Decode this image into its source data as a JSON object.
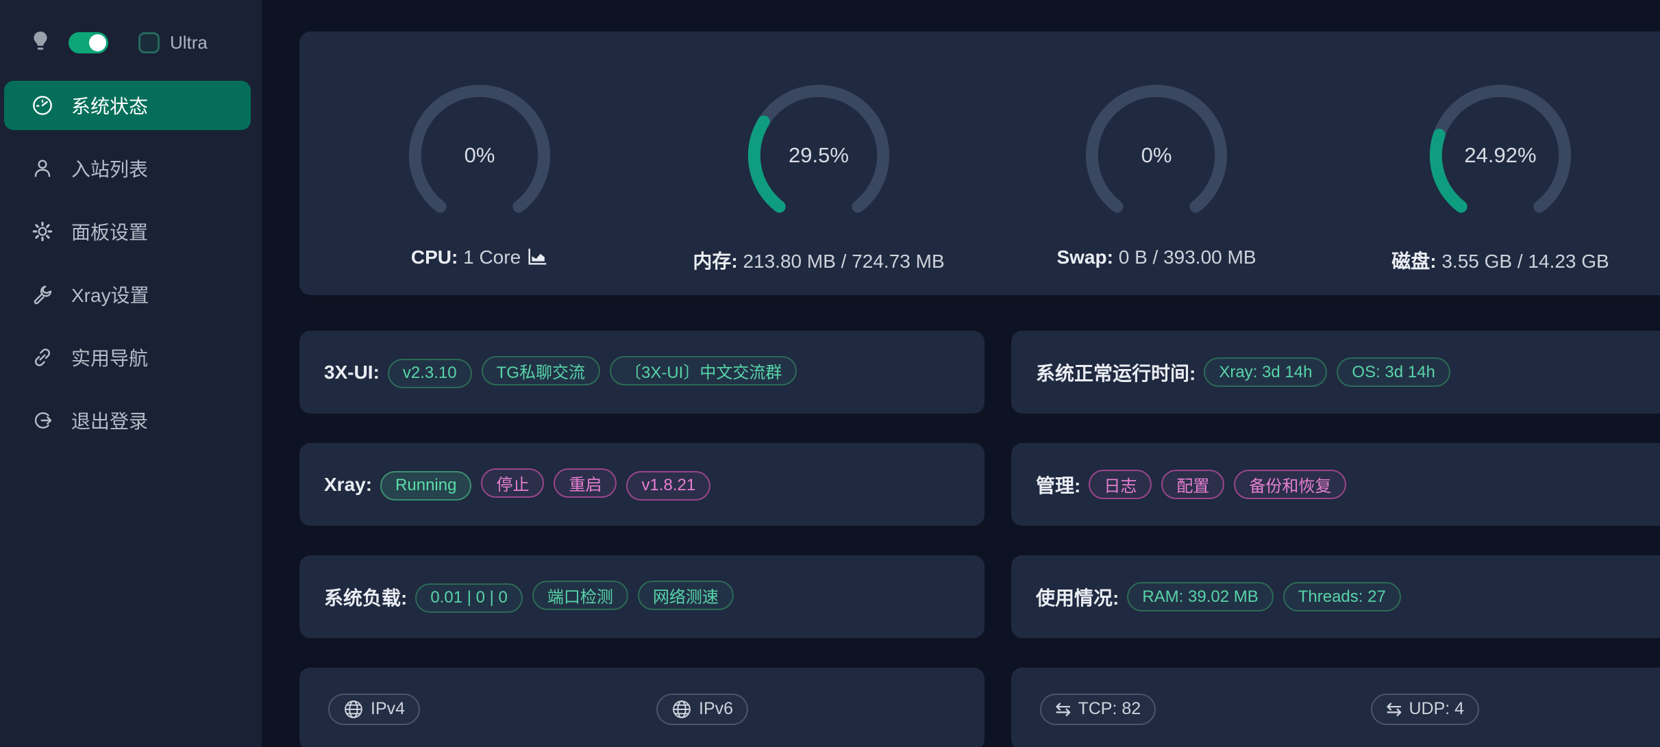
{
  "colors": {
    "accent_green": "#0f9d80",
    "active_menu_bg": "#046e5a",
    "card_bg": "#1f2940",
    "sidebar_bg": "#1a2134",
    "page_bg": "#0d1322",
    "gauge_track": "#3a4760",
    "tag_green_text": "#57d4a8",
    "tag_magenta_text": "#e77fd2"
  },
  "sidebar": {
    "theme_toggle_on": true,
    "ultra_label": "Ultra",
    "items": [
      {
        "label": "系统状态",
        "icon": "dashboard-icon",
        "active": true
      },
      {
        "label": "入站列表",
        "icon": "user-icon",
        "active": false
      },
      {
        "label": "面板设置",
        "icon": "gear-icon",
        "active": false
      },
      {
        "label": "Xray设置",
        "icon": "wrench-icon",
        "active": false
      },
      {
        "label": "实用导航",
        "icon": "link-icon",
        "active": false
      },
      {
        "label": "退出登录",
        "icon": "logout-icon",
        "active": false
      }
    ]
  },
  "gauges": [
    {
      "value_label": "0%",
      "percent": 0,
      "label_bold": "CPU:",
      "label_rest": "1 Core",
      "has_chart_icon": true
    },
    {
      "value_label": "29.5%",
      "percent": 29.5,
      "label_bold": "内存:",
      "label_rest": "213.80 MB / 724.73 MB",
      "has_chart_icon": false
    },
    {
      "value_label": "0%",
      "percent": 0,
      "label_bold": "Swap:",
      "label_rest": "0 B / 393.00 MB",
      "has_chart_icon": false
    },
    {
      "value_label": "24.92%",
      "percent": 24.92,
      "label_bold": "磁盘:",
      "label_rest": "3.55 GB / 14.23 GB",
      "has_chart_icon": false
    }
  ],
  "info_rows": {
    "r1_left": {
      "label": "3X-UI:",
      "tags": [
        {
          "text": "v2.3.10",
          "color": "green",
          "interactable": true
        },
        {
          "text": "TG私聊交流",
          "color": "green",
          "interactable": true
        },
        {
          "text": "〔3X-UI〕中文交流群",
          "color": "green",
          "interactable": true
        }
      ]
    },
    "r1_right": {
      "label": "系统正常运行时间:",
      "tags": [
        {
          "text": "Xray: 3d 14h",
          "color": "green",
          "interactable": false
        },
        {
          "text": "OS: 3d 14h",
          "color": "green",
          "interactable": false
        }
      ]
    },
    "r2_left": {
      "label": "Xray:",
      "tags": [
        {
          "text": "Running",
          "color": "green-filled",
          "interactable": false
        },
        {
          "text": "停止",
          "color": "magenta",
          "interactable": true
        },
        {
          "text": "重启",
          "color": "magenta",
          "interactable": true
        },
        {
          "text": "v1.8.21",
          "color": "magenta",
          "interactable": true
        }
      ]
    },
    "r2_right": {
      "label": "管理:",
      "tags": [
        {
          "text": "日志",
          "color": "magenta",
          "interactable": true
        },
        {
          "text": "配置",
          "color": "magenta",
          "interactable": true
        },
        {
          "text": "备份和恢复",
          "color": "magenta",
          "interactable": true
        }
      ]
    },
    "r3_left": {
      "label": "系统负载:",
      "tags": [
        {
          "text": "0.01 | 0 | 0",
          "color": "green",
          "interactable": false
        },
        {
          "text": "端口检测",
          "color": "green",
          "interactable": true
        },
        {
          "text": "网络测速",
          "color": "green",
          "interactable": true
        }
      ]
    },
    "r3_right": {
      "label": "使用情况:",
      "tags": [
        {
          "text": "RAM: 39.02 MB",
          "color": "green",
          "interactable": false
        },
        {
          "text": "Threads: 27",
          "color": "green",
          "interactable": false
        }
      ]
    },
    "r4_left": {
      "tags": [
        {
          "text": "IPv4",
          "icon": "globe-icon"
        },
        {
          "text": "IPv6",
          "icon": "globe-icon"
        }
      ]
    },
    "r4_right": {
      "tags": [
        {
          "text": "TCP: 82",
          "icon": "swap-icon"
        },
        {
          "text": "UDP: 4",
          "icon": "swap-icon"
        }
      ]
    }
  }
}
